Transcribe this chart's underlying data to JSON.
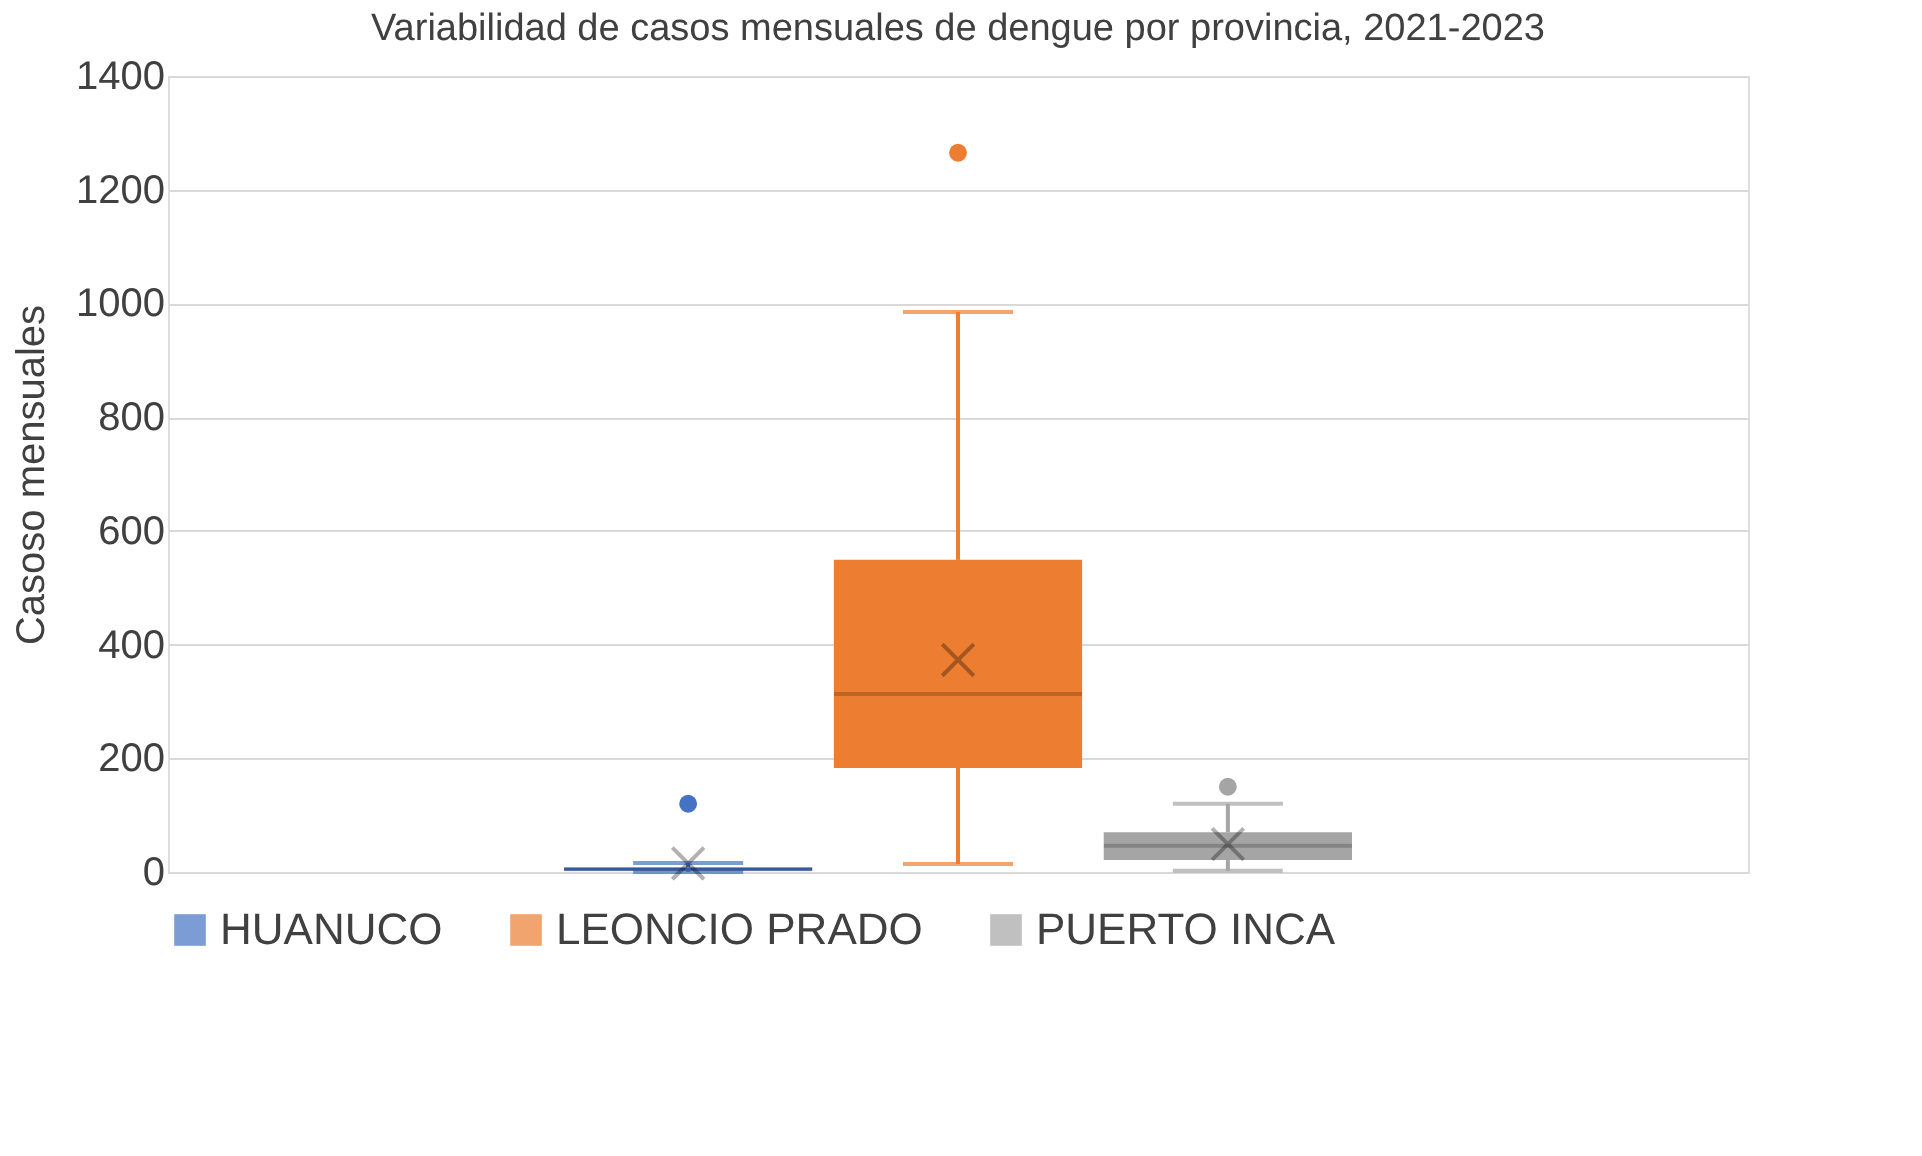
{
  "chart_data": {
    "type": "box",
    "title": "Variabilidad de casos mensuales de dengue por provincia, 2021-2023",
    "ylabel": "Casoso mensuales",
    "categories": [
      null
    ],
    "series": [
      {
        "name": "HUANUCO",
        "color": "#4472c4",
        "boxes": [
          {
            "low": 0,
            "q1": 2,
            "median": 5,
            "q3": 8,
            "high": 16,
            "mean": 15,
            "outliers": [
              120
            ]
          }
        ]
      },
      {
        "name": "LEONCIO PRADO",
        "color": "#ed7d31",
        "boxes": [
          {
            "low": 14,
            "q1": 183,
            "median": 313,
            "q3": 549,
            "high": 985,
            "mean": 373,
            "outliers": [
              1265
            ]
          }
        ]
      },
      {
        "name": "PUERTO INCA",
        "color": "#a5a5a5",
        "boxes": [
          {
            "low": 2,
            "q1": 21,
            "median": 46,
            "q3": 70,
            "high": 120,
            "mean": 49,
            "outliers": [
              150
            ]
          }
        ]
      }
    ],
    "ylim": [
      0,
      1400
    ],
    "yticks": [
      0,
      200,
      400,
      600,
      800,
      1000,
      1200,
      1400
    ],
    "grid": "y",
    "legend": "bottom",
    "tick_labels": "y"
  }
}
